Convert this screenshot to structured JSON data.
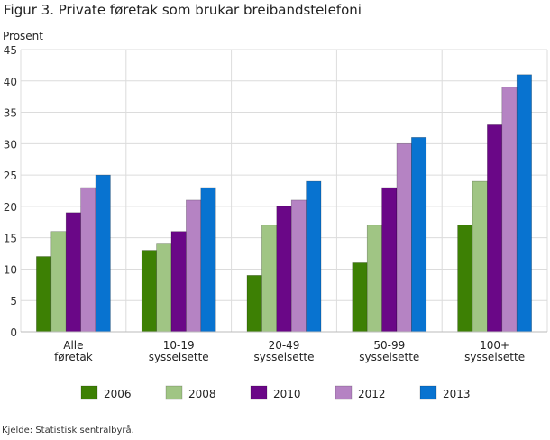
{
  "title": "Figur 3. Private føretak som brukar breibandstelefoni",
  "source": "Kjelde: Statistisk sentralbyrå.",
  "chart_data": {
    "type": "bar",
    "title": "Figur 3. Private føretak som brukar breibandstelefoni",
    "ylabel": "Prosent",
    "xlabel": "",
    "ylim": [
      0,
      45
    ],
    "yticks": [
      0,
      5,
      10,
      15,
      20,
      25,
      30,
      35,
      40,
      45
    ],
    "grid": true,
    "legend_position": "bottom",
    "categories": [
      [
        "Alle",
        "føretak"
      ],
      [
        "10-19",
        "sysselsette"
      ],
      [
        "20-49",
        "sysselsette"
      ],
      [
        "50-99",
        "sysselsette"
      ],
      [
        "100+",
        "sysselsette"
      ]
    ],
    "series": [
      {
        "name": "2006",
        "color": "#3d8004",
        "values": [
          12,
          13,
          9,
          11,
          17
        ]
      },
      {
        "name": "2008",
        "color": "#a0c584",
        "values": [
          16,
          14,
          17,
          17,
          24
        ]
      },
      {
        "name": "2010",
        "color": "#6a0787",
        "values": [
          19,
          16,
          20,
          23,
          33
        ]
      },
      {
        "name": "2012",
        "color": "#b583c3",
        "values": [
          23,
          21,
          21,
          30,
          39
        ]
      },
      {
        "name": "2013",
        "color": "#0873d0",
        "values": [
          25,
          23,
          24,
          31,
          41
        ]
      }
    ]
  }
}
